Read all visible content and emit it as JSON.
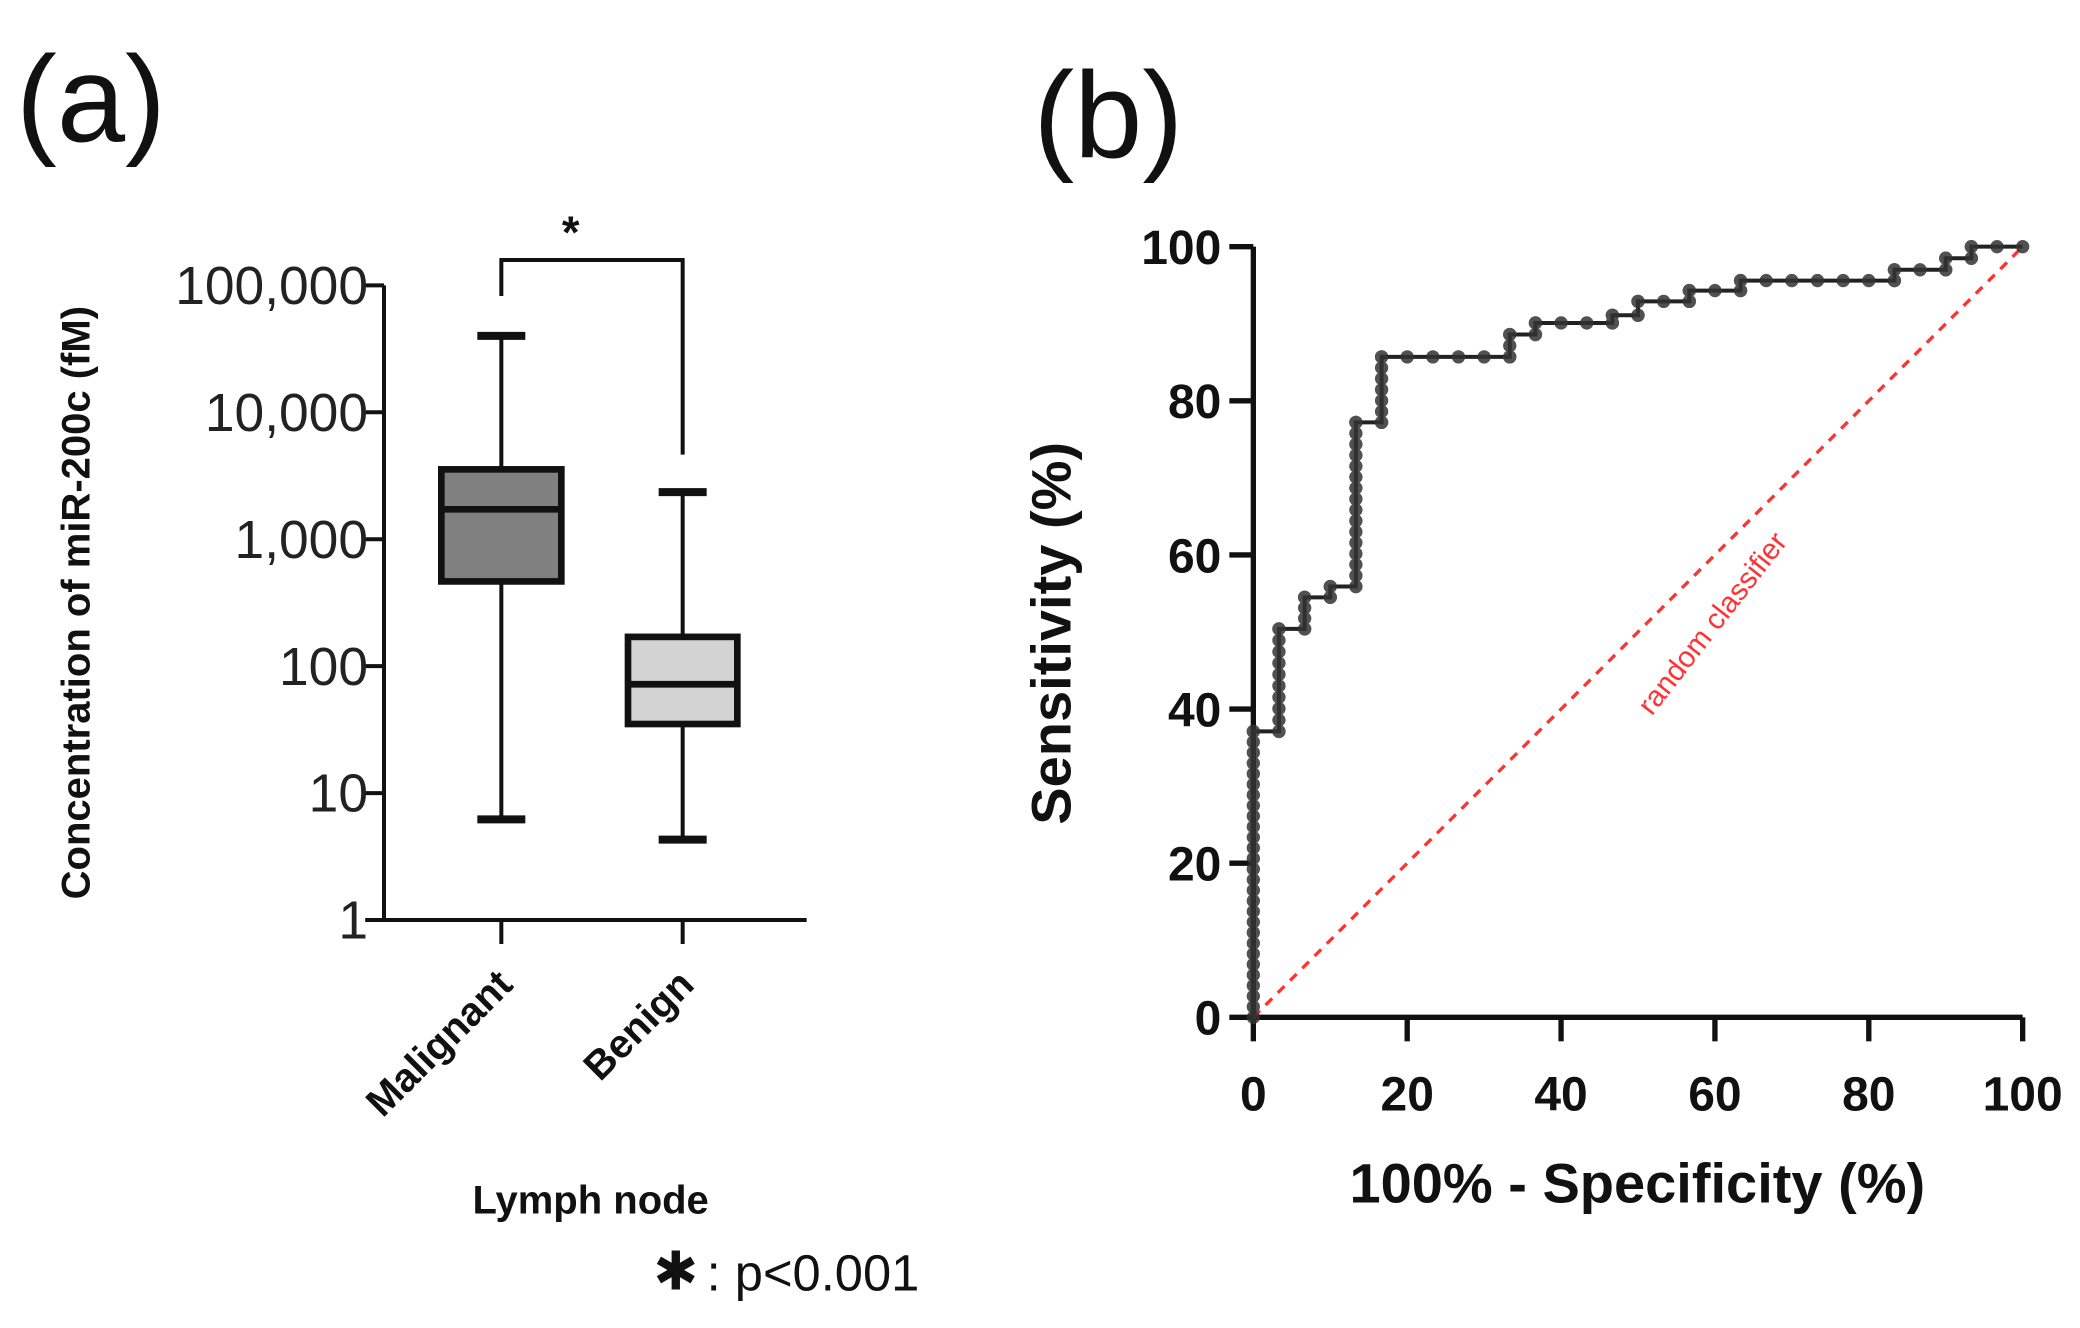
{
  "panels": {
    "a": "(a)",
    "b": "(b)"
  },
  "chart_data": [
    {
      "type": "box",
      "panel": "(a)",
      "ylabel": "Concentration of miR-200c (fM)",
      "xlabel": "Lymph node",
      "yscale": "log",
      "ylim": [
        1,
        100000
      ],
      "yticks": [
        1,
        10,
        100,
        1000,
        10000,
        100000
      ],
      "ytick_labels": [
        "1",
        "10",
        "100",
        "1,000",
        "10,000",
        "100,000"
      ],
      "categories": [
        "Malignant",
        "Benign"
      ],
      "boxes": [
        {
          "name": "Malignant",
          "min": 6.2,
          "q1": 465,
          "median": 1720,
          "q3": 3550,
          "max": 40000,
          "color": "#808080"
        },
        {
          "name": "Benign",
          "min": 4.3,
          "q1": 35,
          "median": 72,
          "q3": 170,
          "max": 2350,
          "color": "#d3d3d3"
        }
      ],
      "significance": {
        "marker": "*",
        "note_symbol": "✱",
        "note_text": ": p<0.001"
      }
    },
    {
      "type": "line",
      "panel": "(b)",
      "xlabel": "100% - Specificity (%)",
      "ylabel": "Sensitivity (%)",
      "xlim": [
        0,
        100
      ],
      "ylim": [
        0,
        100
      ],
      "xticks": [
        0,
        20,
        40,
        60,
        80,
        100
      ],
      "yticks": [
        0,
        20,
        40,
        60,
        80,
        100
      ],
      "series": [
        {
          "name": "ROC",
          "color": "#222222",
          "step_points": [
            [
              0,
              0
            ],
            [
              0,
              37.1
            ],
            [
              3.33,
              37.1
            ],
            [
              3.33,
              50.4
            ],
            [
              6.67,
              50.4
            ],
            [
              6.67,
              54.5
            ],
            [
              10,
              54.5
            ],
            [
              10,
              55.9
            ],
            [
              13.33,
              55.9
            ],
            [
              13.33,
              77.2
            ],
            [
              16.67,
              77.2
            ],
            [
              16.67,
              85.7
            ],
            [
              33.33,
              85.7
            ],
            [
              33.33,
              88.6
            ],
            [
              36.67,
              88.6
            ],
            [
              36.67,
              90.1
            ],
            [
              46.67,
              90.1
            ],
            [
              46.67,
              91.1
            ],
            [
              50,
              91.1
            ],
            [
              50,
              92.9
            ],
            [
              56.67,
              92.9
            ],
            [
              56.67,
              94.3
            ],
            [
              63.33,
              94.3
            ],
            [
              63.33,
              95.6
            ],
            [
              83.33,
              95.6
            ],
            [
              83.33,
              97.0
            ],
            [
              90,
              97.0
            ],
            [
              90,
              98.5
            ],
            [
              93.33,
              98.5
            ],
            [
              93.33,
              100
            ],
            [
              100,
              100
            ]
          ]
        },
        {
          "name": "random classifier",
          "color": "#ff3333",
          "style": "dashed",
          "points": [
            [
              0,
              0
            ],
            [
              100,
              100
            ]
          ]
        }
      ],
      "annotation": "random classifier"
    }
  ]
}
